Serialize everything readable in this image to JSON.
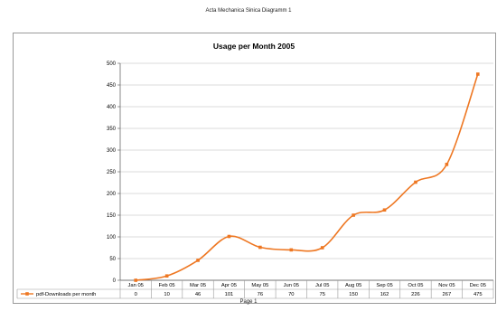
{
  "document": {
    "header": "Acta Mechanica Sinica Diagramm 1",
    "footer": "Page 1"
  },
  "chart_data": {
    "type": "line",
    "title": "Usage per Month 2005",
    "xlabel": "",
    "ylabel": "",
    "ylim": [
      0,
      500
    ],
    "yticks": [
      0,
      50,
      100,
      150,
      200,
      250,
      300,
      350,
      400,
      450,
      500
    ],
    "grid": true,
    "legend_placement": "data-table-left",
    "categories": [
      "Jan 05",
      "Feb 05",
      "Mar 05",
      "Apr 05",
      "May 05",
      "Jun 05",
      "Jul 05",
      "Aug 05",
      "Sep 05",
      "Oct 05",
      "Nov 05",
      "Dec 05"
    ],
    "series": [
      {
        "name": "pdf-Downloads per month",
        "color": "#ee7722",
        "values": [
          0,
          10,
          46,
          101,
          76,
          70,
          75,
          150,
          162,
          226,
          267,
          475
        ]
      }
    ]
  }
}
